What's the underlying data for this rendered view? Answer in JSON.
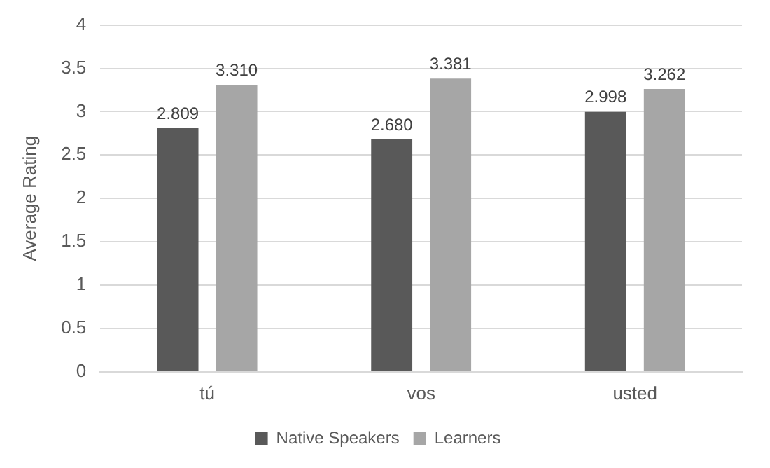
{
  "chart_data": {
    "type": "bar",
    "ylabel": "Average Rating",
    "categories": [
      "tú",
      "vos",
      "usted"
    ],
    "series": [
      {
        "name": "Native Speakers",
        "color": "#595959",
        "values": [
          2.809,
          2.68,
          2.998
        ],
        "value_labels": [
          "2.809",
          "2.680",
          "2.998"
        ]
      },
      {
        "name": "Learners",
        "color": "#a6a6a6",
        "values": [
          3.31,
          3.381,
          3.262
        ],
        "value_labels": [
          "3.310",
          "3.381",
          "3.262"
        ]
      }
    ],
    "ylim": [
      0,
      4
    ],
    "yticks": [
      0,
      0.5,
      1,
      1.5,
      2,
      2.5,
      3,
      3.5,
      4
    ],
    "grid": "y",
    "legend": "bottom"
  }
}
